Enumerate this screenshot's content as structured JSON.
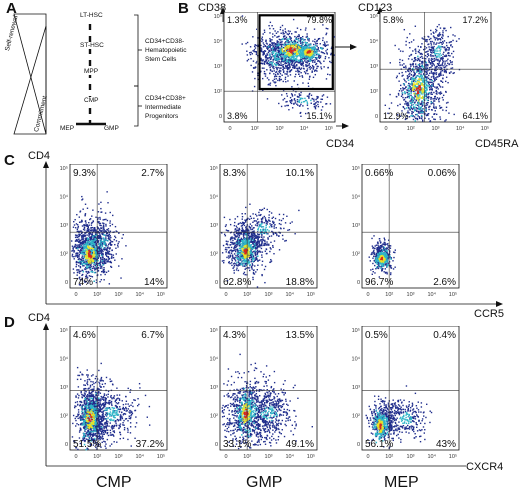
{
  "panels": {
    "A": "A",
    "B": "B",
    "C": "C",
    "D": "D"
  },
  "panel_a": {
    "self_renewal": "Self-renewal",
    "commitment": "Commitment",
    "nodes": [
      "LT-HSC",
      "ST-HSC",
      "MPP",
      "CMP",
      "MEP",
      "GMP"
    ],
    "group_top": [
      "CD34+CD38-",
      "Hematopoietic",
      "Stem Cells"
    ],
    "group_bottom": [
      "CD34+CD38+",
      "Intermediate",
      "Progenitors"
    ]
  },
  "panel_b": {
    "left": {
      "y_axis": "CD38",
      "x_axis": "CD34",
      "q": [
        "1.3%",
        "79.8%",
        "3.8%",
        "15.1%"
      ]
    },
    "right": {
      "y_axis": "CD123",
      "x_axis": "CD45RA",
      "q": [
        "5.8%",
        "17.2%",
        "12.9%",
        "64.1%"
      ]
    }
  },
  "panel_c": {
    "y_axis": "CD4",
    "x_axis": "CCR5",
    "plots": [
      {
        "q": [
          "9.3%",
          "2.7%",
          "74%",
          "14%"
        ]
      },
      {
        "q": [
          "8.3%",
          "10.1%",
          "62.8%",
          "18.8%"
        ]
      },
      {
        "q": [
          "0.66%",
          "0.06%",
          "96.7%",
          "2.6%"
        ]
      }
    ]
  },
  "panel_d": {
    "y_axis": "CD4",
    "x_axis": "CXCR4",
    "plots": [
      {
        "q": [
          "4.6%",
          "6.7%",
          "51.5%",
          "37.2%"
        ]
      },
      {
        "q": [
          "4.3%",
          "13.5%",
          "33.1%",
          "49.1%"
        ]
      },
      {
        "q": [
          "0.5%",
          "0.4%",
          "56.1%",
          "43%"
        ]
      }
    ]
  },
  "populations": [
    "CMP",
    "GMP",
    "MEP"
  ],
  "tick_labels": {
    "y": [
      "10⁵",
      "10⁴",
      "10³",
      "10²",
      "0"
    ],
    "x": [
      "0",
      "10²",
      "10³",
      "10⁴",
      "10⁵"
    ]
  },
  "colors": {
    "axis": "#000000",
    "density_low": "#1f2d8c",
    "density_mid": "#2fb6c8",
    "density_high": "#e8e22a",
    "density_peak": "#d9261c"
  }
}
